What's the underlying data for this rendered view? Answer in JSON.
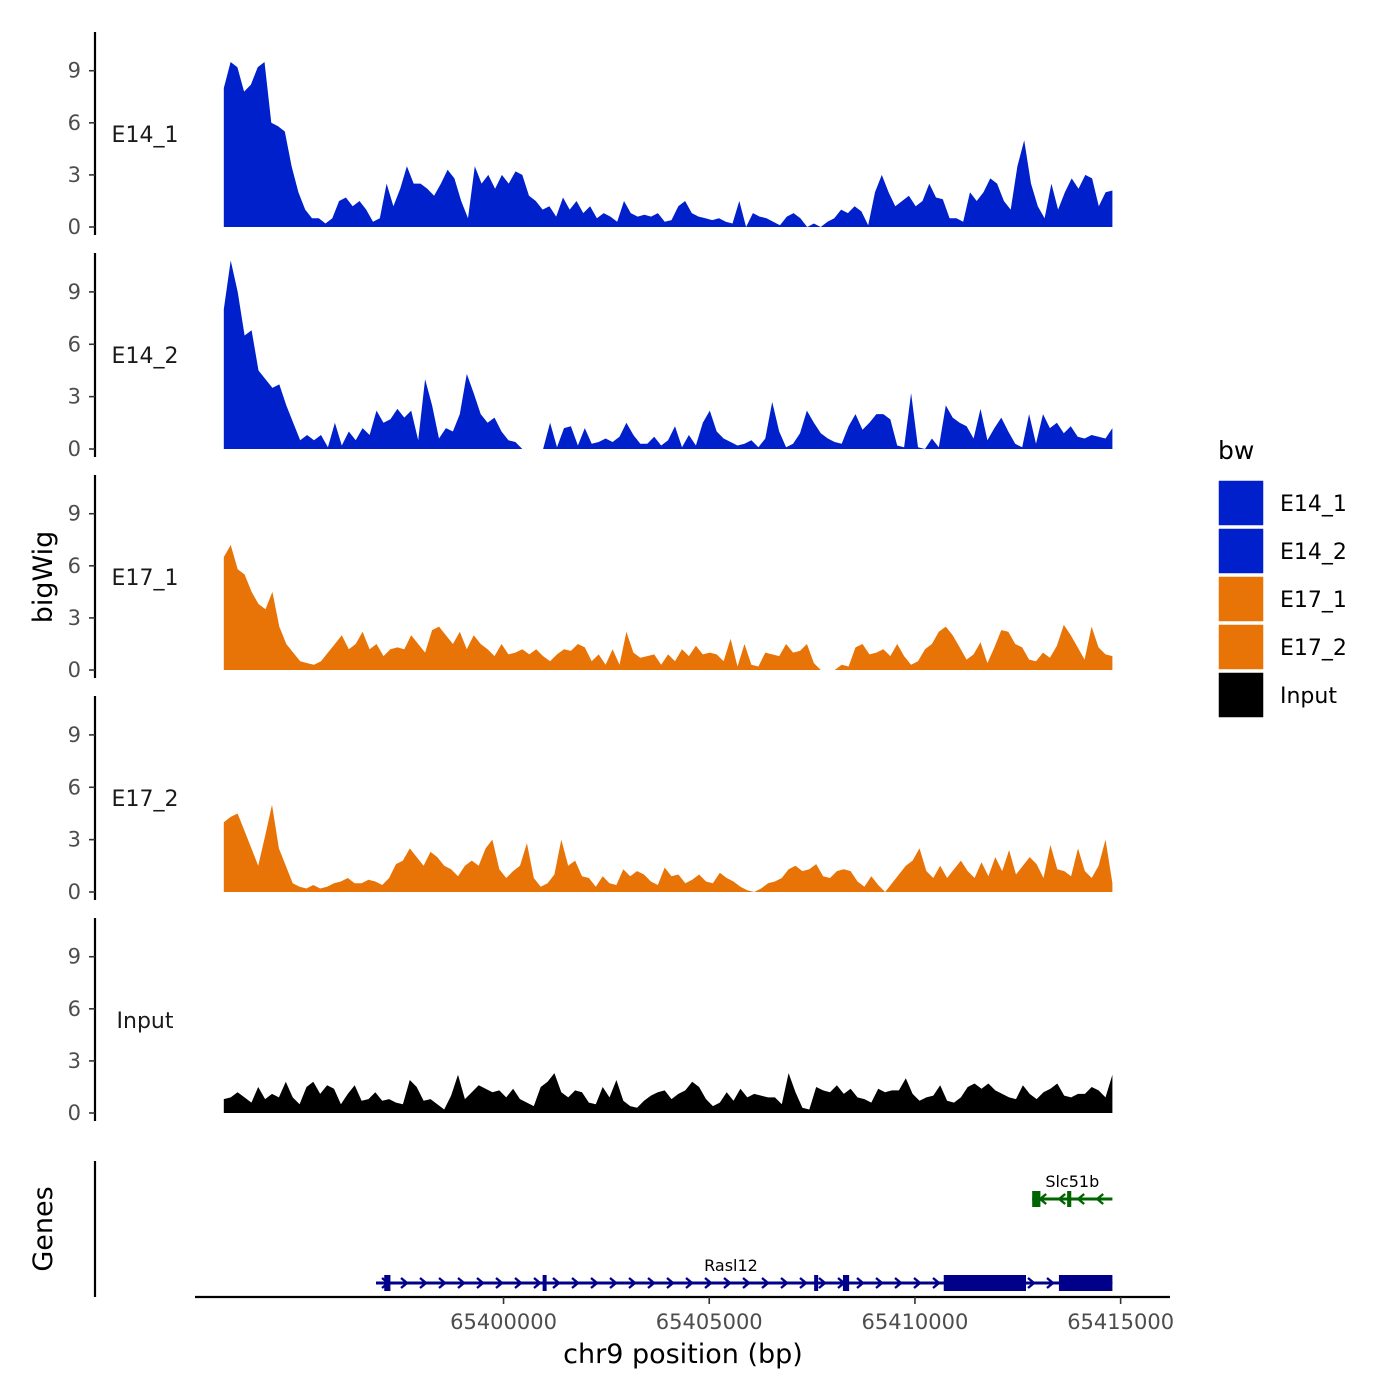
{
  "chart_data": {
    "type": "area",
    "chromosome": "chr9",
    "xlabel": "chr9 position (bp)",
    "ylabel": "bigWig",
    "genes_label": "Genes",
    "xlim": [
      65392500,
      65416200
    ],
    "x_range": [
      65393200,
      65414800
    ],
    "ylim": [
      0,
      11
    ],
    "y_ticks": [
      0,
      3,
      6,
      9
    ],
    "x_ticks": [
      {
        "value": 65400000,
        "label": "65400000"
      },
      {
        "value": 65405000,
        "label": "65405000"
      },
      {
        "value": 65410000,
        "label": "65410000"
      },
      {
        "value": 65415000,
        "label": "65415000"
      }
    ],
    "legend": {
      "title": "bw",
      "entries": [
        {
          "label": "E14_1",
          "color": "#0020CC"
        },
        {
          "label": "E14_2",
          "color": "#0020CC"
        },
        {
          "label": "E17_1",
          "color": "#E87306"
        },
        {
          "label": "E17_2",
          "color": "#E87306"
        },
        {
          "label": "Input",
          "color": "#000000"
        }
      ]
    },
    "series": [
      {
        "name": "E14_1",
        "color": "#0020CC",
        "values": [
          8,
          9.5,
          9.2,
          7.8,
          8.2,
          9.2,
          9.5,
          6,
          5.8,
          5.5,
          3.5,
          2,
          1,
          0.5,
          0.5,
          0.2,
          0.5,
          1.5,
          1.7,
          1.2,
          1.5,
          1,
          0.3,
          0.5,
          2.5,
          1.2,
          2.2,
          3.5,
          2.5,
          2.5,
          2.2,
          1.8,
          2.5,
          3.3,
          2.8,
          1.5,
          0.5,
          3.5,
          2.5,
          3,
          2.2,
          3,
          2.5,
          3.2,
          3,
          1.8,
          1.5,
          1,
          1.2,
          0.6,
          1.7,
          1,
          1.5,
          0.8,
          1.2,
          0.5,
          0.8,
          0.6,
          0.3,
          1.5,
          0.8,
          0.6,
          0.7,
          0.6,
          0.8,
          0.3,
          0.4,
          1.2,
          1.5,
          0.8,
          0.6,
          0.5,
          0.4,
          0.5,
          0.3,
          0.2,
          1.5,
          0,
          0.8,
          0.6,
          0.5,
          0.3,
          0.1,
          0.6,
          0.8,
          0.5,
          0,
          0.2,
          0,
          0.3,
          0.5,
          1,
          0.8,
          1.2,
          0.9,
          0.1,
          2,
          3,
          2,
          1.2,
          1.5,
          1.8,
          1.2,
          1.5,
          2.5,
          1.7,
          1.6,
          0.5,
          0.5,
          0.3,
          2,
          1.5,
          2,
          2.8,
          2.5,
          1.5,
          1,
          3.5,
          5,
          2.5,
          1.2,
          0.5,
          2.5,
          1,
          2,
          2.8,
          2.2,
          3,
          2.8,
          1.2,
          2,
          2.1
        ]
      },
      {
        "name": "E14_2",
        "color": "#0020CC",
        "values": [
          8,
          10.8,
          9,
          6.5,
          6.8,
          4.5,
          4,
          3.5,
          3.7,
          2.5,
          1.5,
          0.5,
          0.8,
          0.5,
          0.8,
          0.1,
          1.5,
          0.2,
          1,
          0.5,
          1.2,
          0.8,
          2.2,
          1.5,
          1.7,
          2.3,
          1.8,
          2.2,
          0.5,
          4,
          2.5,
          0.6,
          1.2,
          1,
          2,
          4.3,
          3.2,
          2,
          1.5,
          1.8,
          1,
          0.5,
          0.4,
          0,
          0,
          0,
          0,
          1.5,
          0.1,
          1.2,
          1.3,
          0.2,
          1.2,
          0.3,
          0.4,
          0.6,
          0.4,
          0.7,
          1.5,
          0.8,
          0.3,
          0.3,
          0.7,
          0.2,
          0.5,
          1.3,
          0.1,
          0.8,
          0.2,
          1.5,
          2.2,
          1,
          0.6,
          0.4,
          0.2,
          0.3,
          0.5,
          0.1,
          0.6,
          2.7,
          1,
          0.1,
          0.3,
          0.9,
          2.2,
          1.5,
          0.9,
          0.6,
          0.4,
          0.3,
          1.3,
          2,
          1.1,
          1.5,
          2,
          2,
          1.7,
          0.2,
          0.1,
          3.2,
          0.1,
          0,
          0.6,
          0.1,
          2.5,
          1.8,
          1.5,
          1.3,
          0.6,
          2.3,
          0.5,
          1.2,
          1.8,
          1,
          0.3,
          0.1,
          2,
          0.3,
          2,
          1.2,
          1.5,
          0.9,
          1.3,
          0.7,
          0.6,
          0.8,
          0.7,
          0.6,
          1.2
        ]
      },
      {
        "name": "E17_1",
        "color": "#E87306",
        "values": [
          6.5,
          7.2,
          5.8,
          5.5,
          4.5,
          3.8,
          3.5,
          4.5,
          2.5,
          1.5,
          1,
          0.5,
          0.4,
          0.3,
          0.5,
          1,
          1.5,
          2,
          1.2,
          1.5,
          2.2,
          1.2,
          1.5,
          0.8,
          1.2,
          1.3,
          1.2,
          2,
          1.5,
          1,
          2.3,
          2.5,
          2,
          1.5,
          2.2,
          1.2,
          2,
          1.5,
          1.2,
          0.8,
          1.5,
          0.9,
          1,
          1.2,
          0.9,
          1.2,
          0.8,
          0.5,
          0.9,
          1.2,
          1.1,
          1.5,
          1.3,
          0.5,
          0.9,
          0.3,
          1.2,
          0.3,
          2.2,
          1,
          0.7,
          0.8,
          0.9,
          0.3,
          0.9,
          0.5,
          1.2,
          0.8,
          1.4,
          0.9,
          1,
          0.9,
          0.5,
          1.8,
          0.2,
          1.5,
          0.3,
          0.2,
          1,
          0.9,
          0.8,
          1.5,
          1,
          1.1,
          1.5,
          0.4,
          0,
          0,
          0,
          0.3,
          0.2,
          1.3,
          1.5,
          0.9,
          1,
          1.2,
          0.8,
          1.5,
          0.8,
          0.3,
          0.5,
          1.2,
          1.5,
          2.2,
          2.5,
          2,
          1.3,
          0.6,
          0.9,
          1.6,
          0.4,
          1.3,
          2.3,
          2.2,
          1.5,
          1.3,
          0.6,
          0.5,
          1,
          0.7,
          1.4,
          2.6,
          2,
          1.3,
          0.6,
          2.5,
          1.3,
          0.9,
          0.8
        ]
      },
      {
        "name": "E17_2",
        "color": "#E87306",
        "values": [
          4,
          4.3,
          4.5,
          3.5,
          2.5,
          1.5,
          3.2,
          5,
          2.5,
          1.5,
          0.5,
          0.3,
          0.2,
          0.4,
          0.2,
          0.3,
          0.5,
          0.6,
          0.8,
          0.5,
          0.5,
          0.7,
          0.6,
          0.4,
          0.8,
          1.6,
          1.8,
          2.5,
          2,
          1.5,
          2.3,
          2,
          1.5,
          1.3,
          0.9,
          1.5,
          1.8,
          1.5,
          2.5,
          3,
          1.3,
          0.8,
          1.2,
          1.5,
          2.8,
          0.8,
          0.3,
          0.5,
          1,
          3,
          1.5,
          1.8,
          0.9,
          0.8,
          0.3,
          0.9,
          0.5,
          0.4,
          1.3,
          0.9,
          1.2,
          1,
          0.6,
          0.4,
          1.4,
          0.9,
          1,
          0.5,
          0.7,
          1,
          0.6,
          0.5,
          1.1,
          0.8,
          0.6,
          0.3,
          0.1,
          0,
          0.2,
          0.5,
          0.6,
          0.8,
          1.3,
          1.5,
          1.2,
          1.3,
          1.6,
          0.9,
          0.8,
          1.2,
          1.3,
          1.2,
          0.6,
          0.3,
          0.9,
          0.4,
          0,
          0.5,
          1,
          1.5,
          1.8,
          2.5,
          1.2,
          0.8,
          1.5,
          0.8,
          1.3,
          1.8,
          1.2,
          0.8,
          1.7,
          0.9,
          2,
          1.2,
          2.4,
          1,
          1.5,
          2,
          1.6,
          0.8,
          2.7,
          1.3,
          1.2,
          0.9,
          2.5,
          1.2,
          0.8,
          1.5,
          3,
          0.5
        ]
      },
      {
        "name": "Input",
        "color": "#000000",
        "values": [
          0.8,
          0.9,
          1.2,
          0.9,
          0.6,
          1.5,
          0.8,
          1.1,
          0.9,
          1.8,
          0.9,
          0.5,
          1.5,
          1.8,
          1.1,
          1.6,
          1.4,
          0.5,
          1.1,
          1.6,
          0.7,
          0.8,
          1.2,
          0.7,
          0.8,
          0.6,
          0.5,
          1.9,
          1.5,
          0.7,
          0.8,
          0.5,
          0.2,
          1,
          2.2,
          0.8,
          1.2,
          1.6,
          1.4,
          1.2,
          1.3,
          0.9,
          1.4,
          0.8,
          0.6,
          0.4,
          1.5,
          1.8,
          2.3,
          1.2,
          0.9,
          1.3,
          1.2,
          0.6,
          0.5,
          1.5,
          0.9,
          1.9,
          0.7,
          0.4,
          0.3,
          0.7,
          1,
          1.2,
          1.3,
          0.8,
          1.1,
          1.3,
          1.8,
          1.5,
          0.8,
          0.4,
          0.6,
          1.2,
          0.7,
          1.4,
          0.9,
          1.1,
          1,
          0.9,
          0.9,
          0.5,
          2.3,
          1.2,
          0.3,
          0.2,
          1.5,
          1.3,
          1.2,
          1.6,
          1.1,
          1.4,
          0.9,
          0.8,
          0.6,
          1.4,
          1.2,
          1.3,
          1.3,
          2,
          1.1,
          0.7,
          0.9,
          1,
          1.6,
          0.7,
          0.6,
          0.9,
          1.5,
          1.7,
          1.4,
          1.7,
          1.3,
          1.1,
          0.9,
          0.8,
          1.6,
          1.1,
          0.8,
          1.2,
          1.4,
          1.7,
          1,
          0.9,
          1.1,
          1.1,
          1.5,
          1.3,
          0.9,
          2.2
        ]
      }
    ],
    "genes": [
      {
        "name": "Slc51b",
        "color": "#006400",
        "strand": "-",
        "row": 1,
        "start": 65412850,
        "end": 65414800,
        "exons": [
          [
            65412850,
            65413050
          ],
          [
            65413700,
            65413800
          ]
        ]
      },
      {
        "name": "Rasl12",
        "color": "#00008B",
        "strand": "+",
        "row": 2,
        "start": 65396900,
        "end": 65414800,
        "exons": [
          [
            65397100,
            65397250
          ],
          [
            65400950,
            65401000
          ],
          [
            65407550,
            65407600
          ],
          [
            65408250,
            65408400
          ],
          [
            65410700,
            65412700
          ],
          [
            65413500,
            65414800
          ]
        ]
      }
    ]
  }
}
